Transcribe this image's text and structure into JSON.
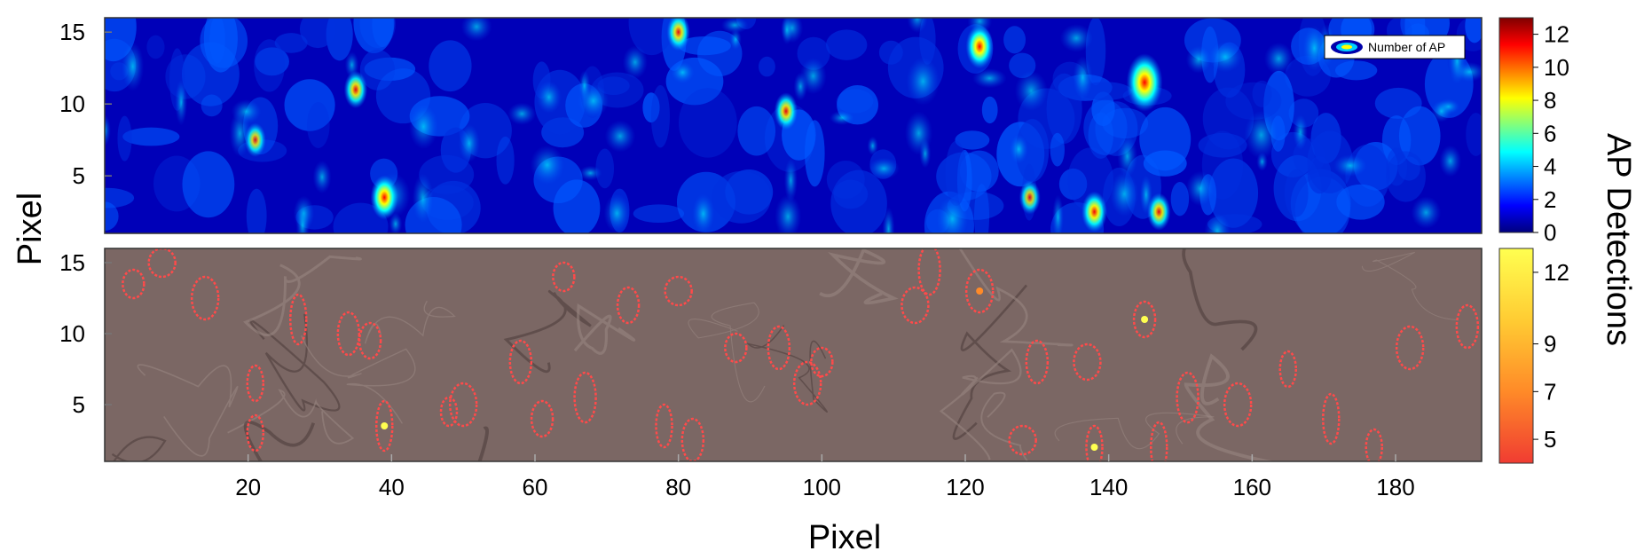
{
  "chart_data": [
    {
      "type": "heatmap",
      "panel": "top",
      "title": "",
      "xlabel": "",
      "ylabel": "Pixel",
      "xlim": [
        0,
        192
      ],
      "ylim": [
        1,
        16
      ],
      "y_ticks": [
        "5",
        "10",
        "15"
      ],
      "legend": {
        "entry": "Number of AP",
        "placement": "top-right"
      },
      "colorbar": {
        "label": "AP Detections",
        "range": [
          0,
          13
        ],
        "ticks": [
          "0",
          "2",
          "4",
          "6",
          "8",
          "10",
          "12"
        ],
        "colors": [
          "#00007f",
          "#0000ff",
          "#007fff",
          "#00ffff",
          "#7fff7f",
          "#ffff00",
          "#ff7f00",
          "#ff0000",
          "#7f0000"
        ]
      },
      "hotspots": [
        {
          "x": 145,
          "y": 11.5,
          "value": 12
        },
        {
          "x": 39,
          "y": 3.5,
          "value": 8
        },
        {
          "x": 138,
          "y": 2.5,
          "value": 7
        },
        {
          "x": 122,
          "y": 14,
          "value": 8
        },
        {
          "x": 80,
          "y": 15,
          "value": 6
        },
        {
          "x": 95,
          "y": 9.5,
          "value": 6
        },
        {
          "x": 147,
          "y": 2.5,
          "value": 6
        },
        {
          "x": 35,
          "y": 11,
          "value": 6
        },
        {
          "x": 21,
          "y": 7.5,
          "value": 5
        },
        {
          "x": 129,
          "y": 3.5,
          "value": 5
        }
      ]
    },
    {
      "type": "scatter",
      "panel": "bottom",
      "title": "",
      "xlabel": "Pixel",
      "ylabel": "Pixel",
      "xlim": [
        0,
        192
      ],
      "ylim": [
        1,
        16
      ],
      "x_ticks": [
        "20",
        "40",
        "60",
        "80",
        "100",
        "120",
        "140",
        "160",
        "180"
      ],
      "y_ticks": [
        "5",
        "10",
        "15"
      ],
      "colorbar": {
        "range": [
          4,
          13
        ],
        "ticks": [
          "5",
          "7",
          "9",
          "12"
        ],
        "colors": [
          "#f03c32",
          "#ff8a28",
          "#ffcc33",
          "#ffff50"
        ]
      },
      "regions": [
        {
          "x": 4,
          "y": 13.5,
          "value": 5
        },
        {
          "x": 8,
          "y": 15,
          "value": 5
        },
        {
          "x": 14,
          "y": 12.5,
          "value": 5
        },
        {
          "x": 21,
          "y": 6.5,
          "value": 5
        },
        {
          "x": 21,
          "y": 3,
          "value": 5
        },
        {
          "x": 27,
          "y": 11,
          "value": 5
        },
        {
          "x": 34,
          "y": 10,
          "value": 5
        },
        {
          "x": 37,
          "y": 9.5,
          "value": 5
        },
        {
          "x": 39,
          "y": 3.5,
          "value": 12
        },
        {
          "x": 48,
          "y": 4.5,
          "value": 5
        },
        {
          "x": 50,
          "y": 5,
          "value": 5
        },
        {
          "x": 58,
          "y": 8,
          "value": 5
        },
        {
          "x": 61,
          "y": 4,
          "value": 5
        },
        {
          "x": 64,
          "y": 14,
          "value": 5
        },
        {
          "x": 67,
          "y": 5.5,
          "value": 5
        },
        {
          "x": 73,
          "y": 12,
          "value": 5
        },
        {
          "x": 78,
          "y": 3.5,
          "value": 5
        },
        {
          "x": 80,
          "y": 13,
          "value": 5
        },
        {
          "x": 82,
          "y": 2.5,
          "value": 5
        },
        {
          "x": 88,
          "y": 9,
          "value": 5
        },
        {
          "x": 94,
          "y": 9,
          "value": 5
        },
        {
          "x": 98,
          "y": 6.5,
          "value": 5
        },
        {
          "x": 100,
          "y": 8,
          "value": 5
        },
        {
          "x": 113,
          "y": 12,
          "value": 5
        },
        {
          "x": 115,
          "y": 14.5,
          "value": 5
        },
        {
          "x": 122,
          "y": 13,
          "value": 7
        },
        {
          "x": 128,
          "y": 2.5,
          "value": 5
        },
        {
          "x": 130,
          "y": 8,
          "value": 5
        },
        {
          "x": 137,
          "y": 8,
          "value": 5
        },
        {
          "x": 138,
          "y": 2,
          "value": 12
        },
        {
          "x": 145,
          "y": 11,
          "value": 12
        },
        {
          "x": 147,
          "y": 2,
          "value": 5
        },
        {
          "x": 151,
          "y": 5.5,
          "value": 5
        },
        {
          "x": 158,
          "y": 5,
          "value": 5
        },
        {
          "x": 165,
          "y": 7.5,
          "value": 5
        },
        {
          "x": 171,
          "y": 4,
          "value": 5
        },
        {
          "x": 177,
          "y": 2,
          "value": 5
        },
        {
          "x": 182,
          "y": 9,
          "value": 5
        },
        {
          "x": 190,
          "y": 10.5,
          "value": 5
        }
      ]
    }
  ]
}
